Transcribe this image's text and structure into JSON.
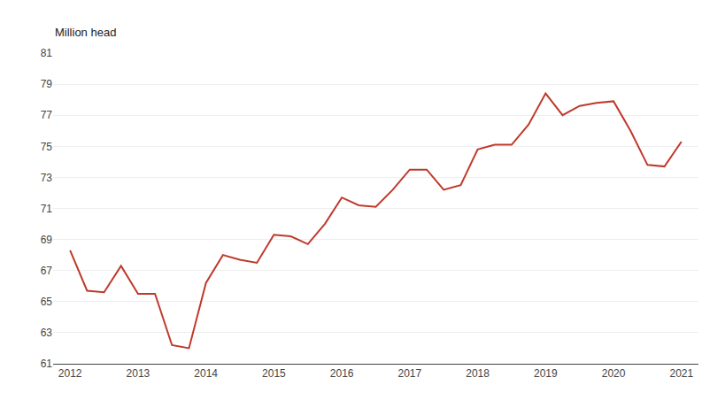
{
  "chart_data": {
    "type": "line",
    "ylabel": "Million head",
    "x": [
      2012.0,
      2012.25,
      2012.5,
      2012.75,
      2013.0,
      2013.25,
      2013.5,
      2013.75,
      2014.0,
      2014.25,
      2014.5,
      2014.75,
      2015.0,
      2015.25,
      2015.5,
      2015.75,
      2016.0,
      2016.25,
      2016.5,
      2016.75,
      2017.0,
      2017.25,
      2017.5,
      2017.75,
      2018.0,
      2018.25,
      2018.5,
      2018.75,
      2019.0,
      2019.25,
      2019.5,
      2019.75,
      2020.0,
      2020.25,
      2020.5,
      2020.75,
      2021.0
    ],
    "values": [
      68.3,
      65.7,
      65.6,
      67.3,
      65.5,
      65.5,
      62.2,
      62.0,
      66.2,
      68.0,
      67.7,
      67.5,
      69.3,
      69.2,
      68.7,
      70.0,
      71.7,
      71.2,
      71.1,
      72.2,
      73.5,
      73.5,
      72.2,
      72.5,
      74.8,
      75.1,
      75.1,
      76.4,
      78.4,
      77.0,
      77.6,
      77.8,
      77.9,
      76.0,
      73.8,
      73.7,
      75.3
    ],
    "color": "#c0392b",
    "xlim": [
      2011.75,
      2021.25
    ],
    "xticks": [
      2012,
      2013,
      2014,
      2015,
      2016,
      2017,
      2018,
      2019,
      2020,
      2021
    ],
    "ylim": [
      61,
      81
    ],
    "yticks": [
      61,
      63,
      65,
      67,
      69,
      71,
      73,
      75,
      77,
      79,
      81
    ],
    "grid": true
  }
}
